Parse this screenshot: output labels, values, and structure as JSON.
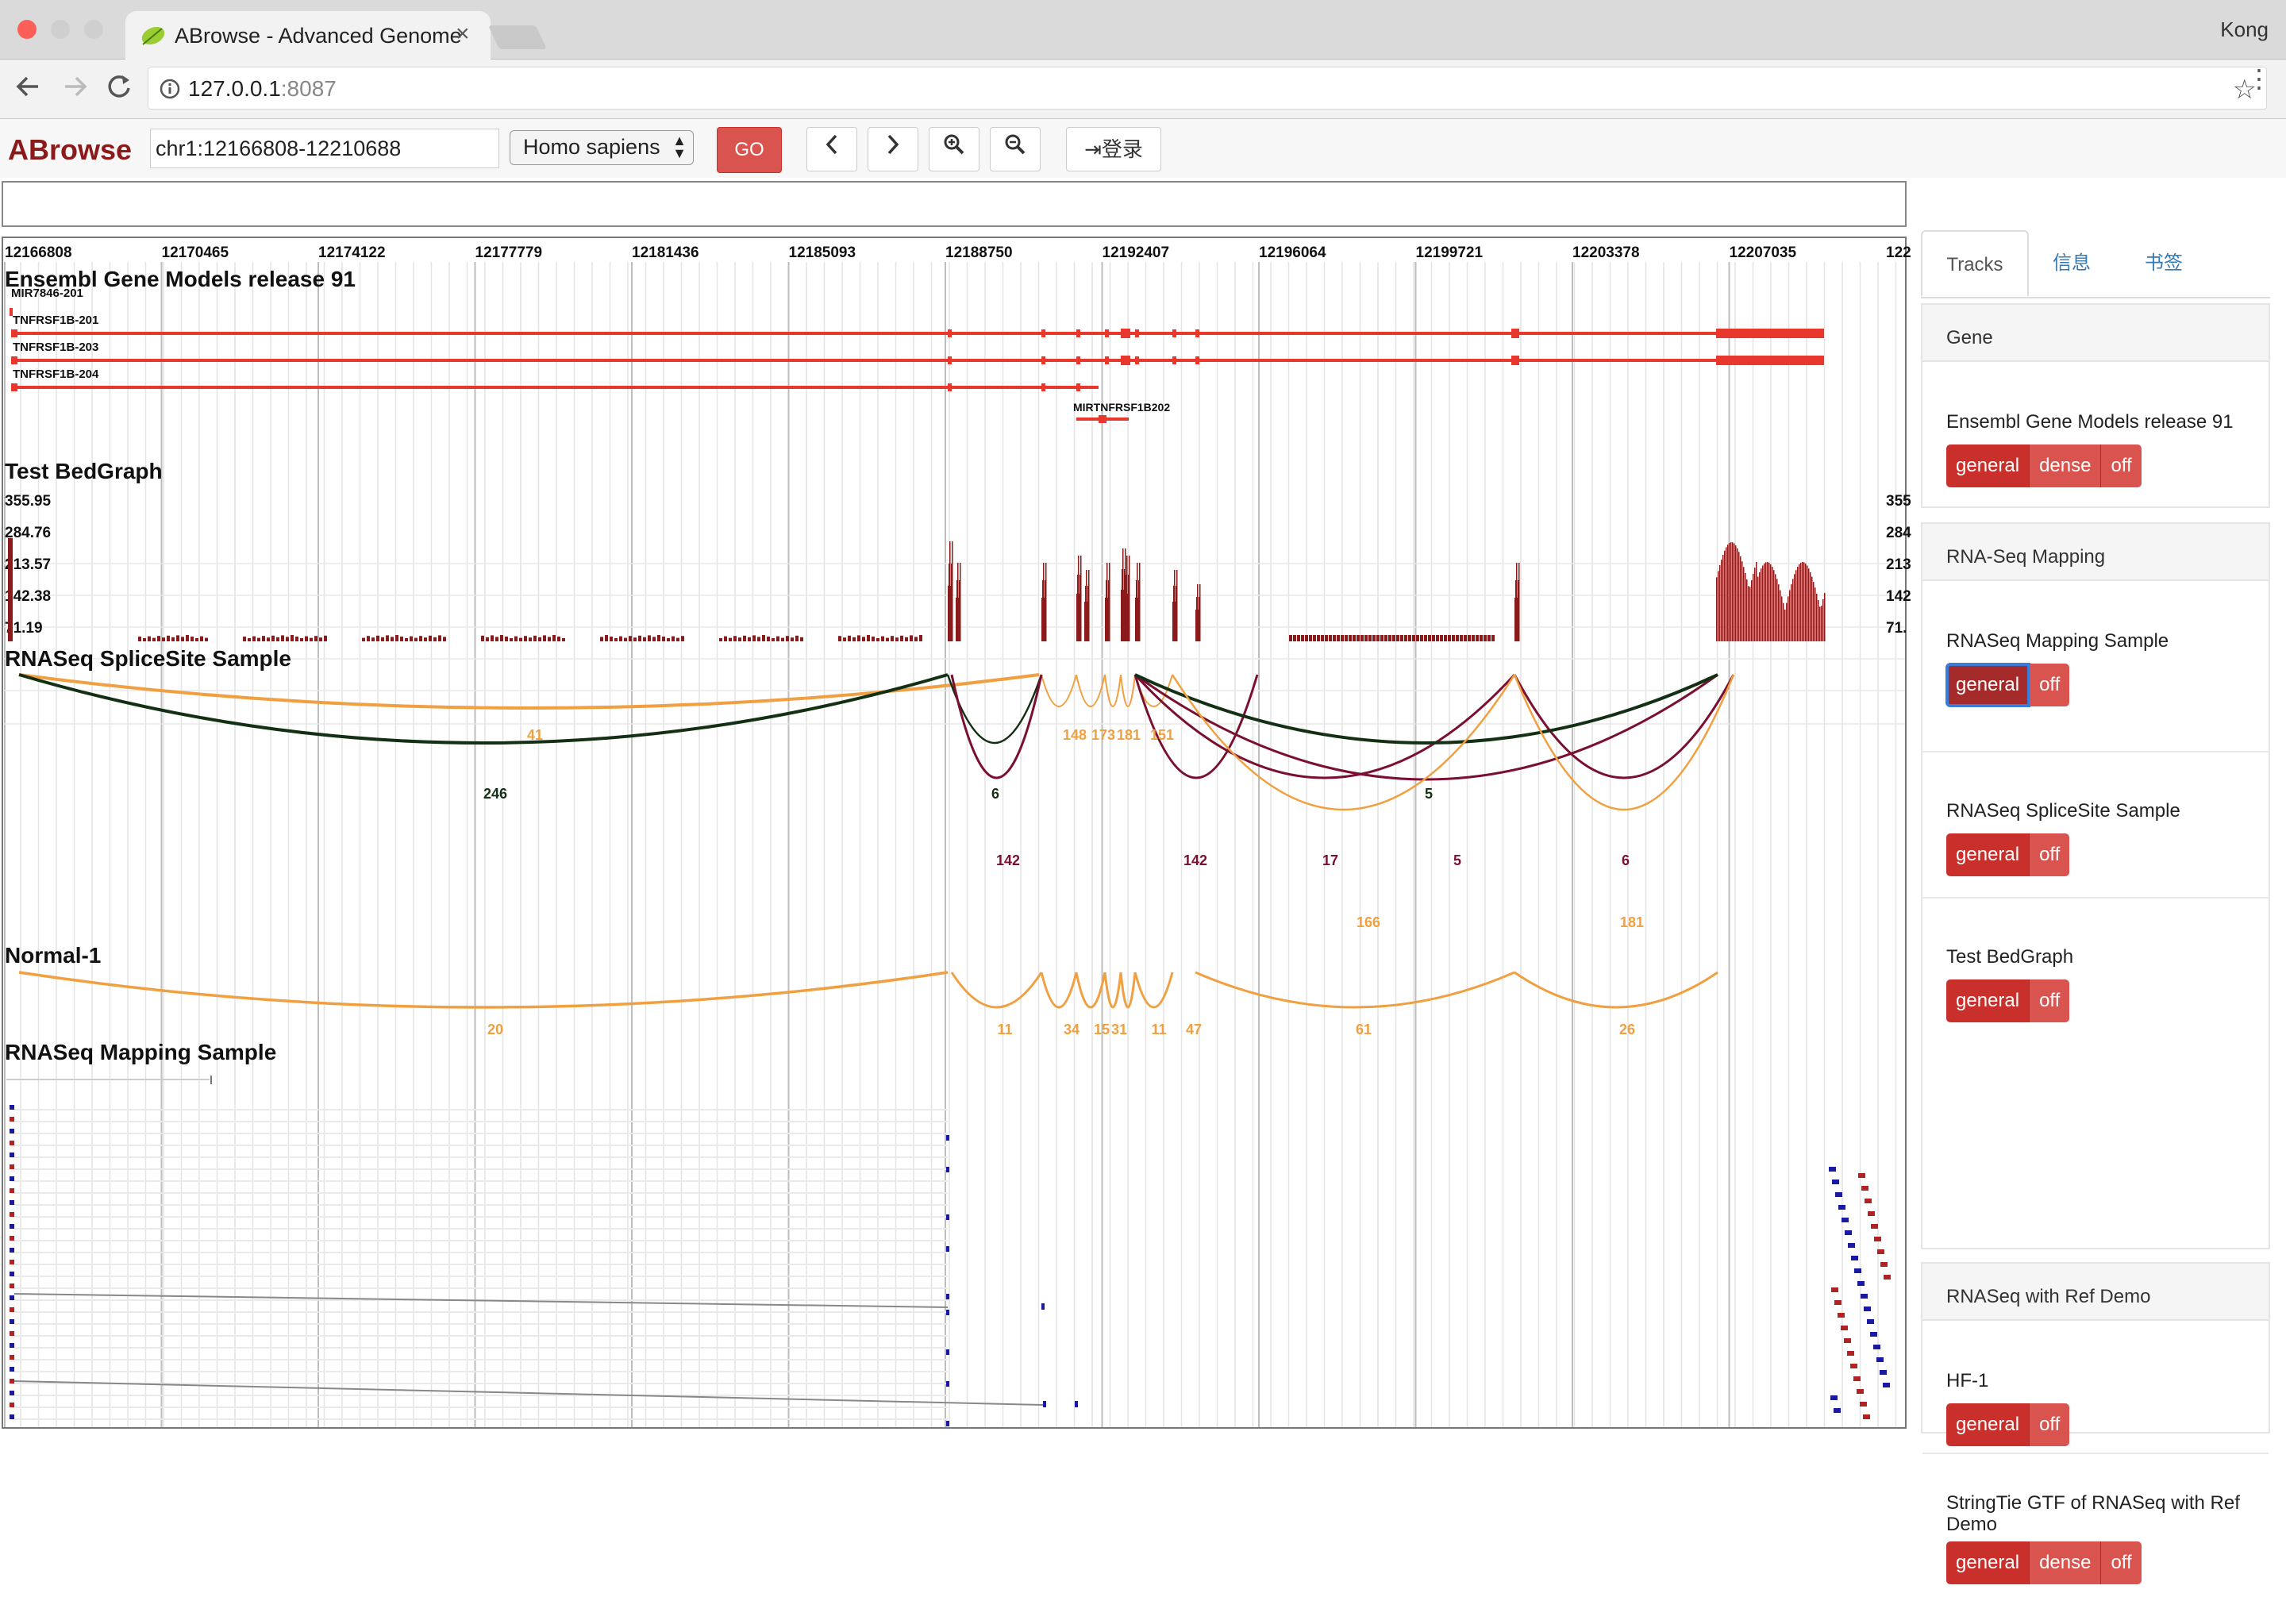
{
  "browser": {
    "tab_title": "ABrowse - Advanced Genome",
    "user_name": "Kong",
    "url_host": "127.0.0.1",
    "url_port": ":8087"
  },
  "toolbar": {
    "logo": "ABrowse",
    "location": "chr1:12166808-12210688",
    "species": "Homo sapiens",
    "go_label": "GO",
    "login_label": "登录",
    "buttons": [
      "chevron-left-icon",
      "chevron-right-icon",
      "zoom-in-icon",
      "zoom-out-icon"
    ]
  },
  "ruler": {
    "ticks": [
      "12166808",
      "12170465",
      "12174122",
      "12177779",
      "12181436",
      "12185093",
      "12188750",
      "12192407",
      "12196064",
      "12199721",
      "12203378",
      "12207035",
      "122"
    ]
  },
  "tracks": {
    "ensembl": {
      "title": "Ensembl Gene Models release 91",
      "transcripts": [
        "MIR7846-201",
        "TNFRSF1B-201",
        "TNFRSF1B-203",
        "TNFRSF1B-204"
      ],
      "cluster_label": "MIRTNFRSF1B202"
    },
    "bedgraph": {
      "title": "Test BedGraph",
      "scale_left": [
        "355.95",
        "284.76",
        "213.57",
        "142.38",
        "71.19"
      ],
      "scale_right": [
        "355",
        "284",
        "213",
        "142",
        "71."
      ]
    },
    "splicesite": {
      "title": "RNASeq SpliceSite Sample",
      "labels": [
        "41",
        "246",
        "6",
        "148",
        "173",
        "181",
        "151",
        "142",
        "142",
        "17",
        "5",
        "5",
        "6",
        "166",
        "181"
      ]
    },
    "normal": {
      "title": "Normal-1",
      "labels": [
        "20",
        "11",
        "34",
        "15",
        "31",
        "11",
        "47",
        "61",
        "26"
      ]
    },
    "mapping": {
      "title": "RNASeq Mapping Sample"
    }
  },
  "sidebar": {
    "tabs": [
      "Tracks",
      "信息",
      "书签"
    ],
    "groups": [
      {
        "header": "Gene",
        "items": [
          {
            "name": "Ensembl Gene Models release 91",
            "buttons": [
              "general",
              "dense",
              "off"
            ]
          }
        ]
      },
      {
        "header": "RNA-Seq Mapping",
        "items": [
          {
            "name": "RNASeq Mapping Sample",
            "buttons": [
              "general",
              "off"
            ]
          },
          {
            "name": "RNASeq SpliceSite Sample",
            "buttons": [
              "general",
              "off"
            ]
          },
          {
            "name": "Test BedGraph",
            "buttons": [
              "general",
              "off"
            ]
          }
        ]
      },
      {
        "header": "RNASeq with Ref Demo",
        "items": [
          {
            "name": "HF-1",
            "buttons": [
              "general",
              "off"
            ]
          },
          {
            "name": "StringTie GTF of RNASeq with Ref Demo",
            "buttons": [
              "general",
              "dense",
              "off"
            ]
          }
        ]
      }
    ]
  },
  "colors": {
    "accent": "#c9302c",
    "gene": "#e8382e",
    "arc_orange": "#f0a040",
    "arc_dark": "#143014",
    "arc_maroon": "#7a1030",
    "bar": "#8b1a1a"
  }
}
